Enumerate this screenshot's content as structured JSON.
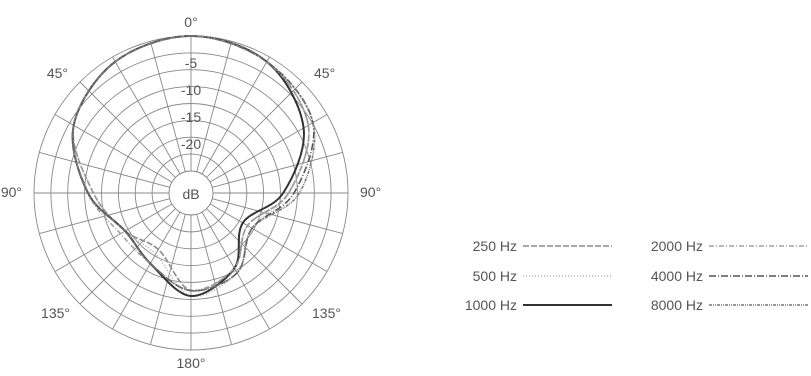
{
  "chart_data": {
    "type": "polar",
    "center_label": "dB",
    "radial_ticks": [
      "-5",
      "-10",
      "-15",
      "-20"
    ],
    "radial_range_db": [
      -25,
      0
    ],
    "angle_labels": [
      {
        "text": "0°",
        "angle": 0
      },
      {
        "text": "45°",
        "angle": -45
      },
      {
        "text": "45°",
        "angle": 45
      },
      {
        "text": "90°",
        "angle": -90
      },
      {
        "text": "90°",
        "angle": 90
      },
      {
        "text": "135°",
        "angle": -135
      },
      {
        "text": "135°",
        "angle": 135
      },
      {
        "text": "180°",
        "angle": 180
      }
    ],
    "grid": true,
    "legend_position": "right",
    "angles_deg": [
      0,
      30,
      60,
      90,
      120,
      150,
      180,
      210,
      240,
      270,
      300,
      330
    ],
    "series": [
      {
        "name": "250 Hz",
        "color": "#8a8a8a",
        "dash": "6 2",
        "values_db": [
          0,
          -1,
          -4,
          -11,
          -17,
          -13,
          -11,
          -17,
          -15,
          -11,
          -4,
          -1
        ]
      },
      {
        "name": "500 Hz",
        "color": "#b0b0b0",
        "dash": "1 2",
        "values_db": [
          0,
          -1,
          -4,
          -11,
          -16,
          -12,
          -10,
          -16,
          -15,
          -11,
          -4,
          -1
        ]
      },
      {
        "name": "1000 Hz",
        "color": "#333333",
        "dash": "",
        "values_db": [
          0,
          -1,
          -5,
          -12,
          -18,
          -13,
          -10,
          -14,
          -15,
          -10,
          -4,
          -1
        ]
      },
      {
        "name": "2000 Hz",
        "color": "#a0a0a0",
        "dash": "5 2 1 2",
        "values_db": [
          0,
          -1,
          -4,
          -11,
          -17,
          -13,
          -11,
          -14,
          -14,
          -10,
          -4,
          -1
        ]
      },
      {
        "name": "4000 Hz",
        "color": "#555555",
        "dash": "7 2 1 2",
        "values_db": [
          0,
          -1,
          -3,
          -10,
          -16,
          -12,
          -11,
          -14,
          -15,
          -10,
          -4,
          -1
        ]
      },
      {
        "name": "8000 Hz",
        "color": "#777777",
        "dash": "3 1 1 1 1 1",
        "values_db": [
          0,
          -1,
          -3,
          -9,
          -16,
          -12,
          -11,
          -14,
          -15,
          -10,
          -4,
          -1
        ]
      }
    ]
  }
}
